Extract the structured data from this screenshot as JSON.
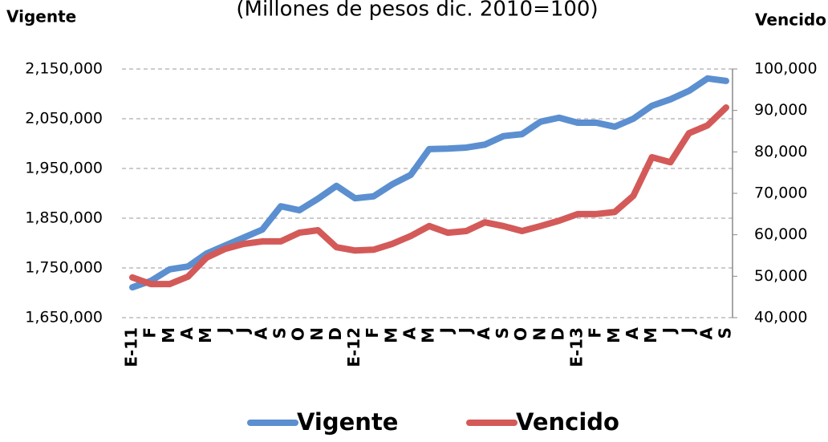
{
  "chart_data": {
    "type": "line",
    "subtitle": "(Millones de pesos dic. 2010=100)",
    "y_label": "Vigente",
    "y2_label": "Vencido",
    "categories": [
      "E-11",
      "F",
      "M",
      "A",
      "M",
      "J",
      "J",
      "A",
      "S",
      "O",
      "N",
      "D",
      "E-12",
      "F",
      "M",
      "A",
      "M",
      "J",
      "J",
      "A",
      "S",
      "O",
      "N",
      "D",
      "E-13",
      "F",
      "M",
      "A",
      "M",
      "J",
      "J",
      "A",
      "S"
    ],
    "series": [
      {
        "name": "Vigente",
        "color": "#5b8fd0",
        "axis": "y",
        "values": [
          1711000,
          1724000,
          1747000,
          1753000,
          1779000,
          1795000,
          1811000,
          1827000,
          1874000,
          1866000,
          1889000,
          1915000,
          1890000,
          1894000,
          1918000,
          1937000,
          1989000,
          1990000,
          1992000,
          1998000,
          2015000,
          2019000,
          2044000,
          2052000,
          2042000,
          2042000,
          2034000,
          2050000,
          2076000,
          2089000,
          2106000,
          2131000,
          2126000
        ]
      },
      {
        "name": "Vencido",
        "color": "#d35a58",
        "axis": "y2",
        "values": [
          49700,
          48100,
          48100,
          49900,
          54500,
          56600,
          57800,
          58400,
          58400,
          60500,
          61100,
          57000,
          56200,
          56400,
          57800,
          59700,
          62100,
          60500,
          60900,
          63000,
          62100,
          60900,
          62100,
          63400,
          65000,
          65000,
          65500,
          69400,
          78700,
          77500,
          84500,
          86400,
          90700
        ]
      }
    ],
    "ylim": [
      1650000,
      2150000
    ],
    "yticks": [
      {
        "value": 1650000,
        "label": "1,650,000"
      },
      {
        "value": 1750000,
        "label": "1,750,000"
      },
      {
        "value": 1850000,
        "label": "1,850,000"
      },
      {
        "value": 1950000,
        "label": "1,950,000"
      },
      {
        "value": 2050000,
        "label": "2,050,000"
      },
      {
        "value": 2150000,
        "label": "2,150,000"
      }
    ],
    "y2lim": [
      40000,
      100000
    ],
    "y2ticks": [
      {
        "value": 40000,
        "label": "40,000"
      },
      {
        "value": 50000,
        "label": "50,000"
      },
      {
        "value": 60000,
        "label": "60,000"
      },
      {
        "value": 70000,
        "label": "70,000"
      },
      {
        "value": 80000,
        "label": "80,000"
      },
      {
        "value": 90000,
        "label": "90,000"
      },
      {
        "value": 100000,
        "label": "100,000"
      }
    ],
    "grid": true,
    "legend": "bottom"
  }
}
